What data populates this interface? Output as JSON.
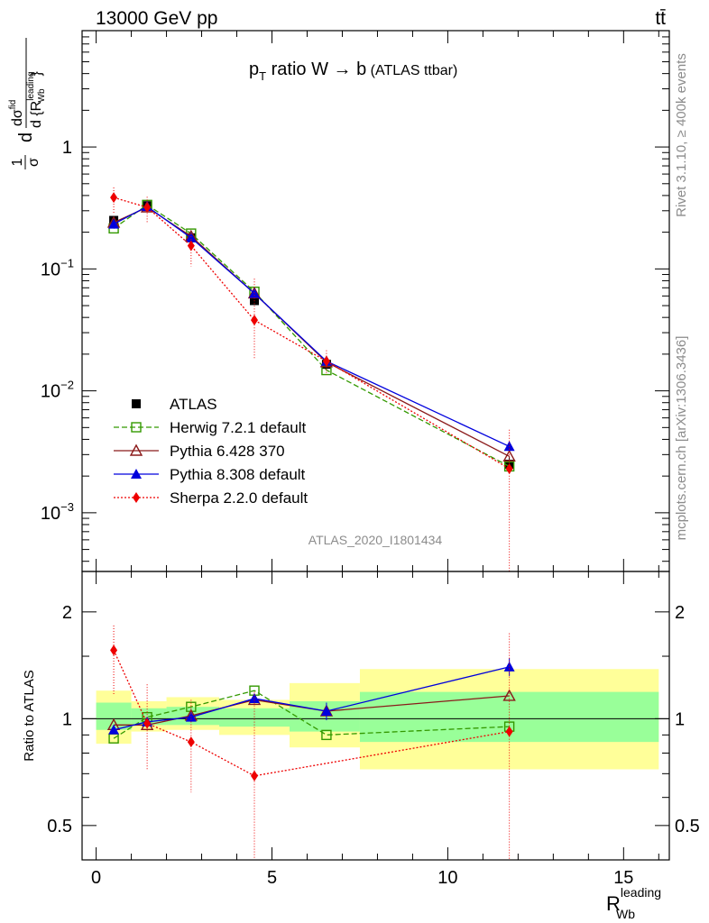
{
  "header": {
    "left_label": "13000 GeV pp",
    "right_label": "tt̄"
  },
  "side_labels": {
    "rivet": "Rivet 3.1.10, ≥ 400k events",
    "mcplots": "mcplots.cern.ch [arXiv:1306.3436]"
  },
  "plot_title": {
    "main": "p",
    "sub": "T",
    "rest": " ratio W → b",
    "small": " (ATLAS ttbar)"
  },
  "watermark": "ATLAS_2020_I1801434",
  "top_ylabel": {
    "frac": "1",
    "sigma": "σ",
    "d1": "d",
    "num": "dσ",
    "num_sup": "fid",
    "den": "d {R",
    "den_sup": "leading",
    "den_sub": "Wb",
    "den_close": "}"
  },
  "bottom_ylabel": "Ratio to ATLAS",
  "xlabel": {
    "main": "R",
    "sup": "leading",
    "sub": "Wb"
  },
  "chart_data": [
    {
      "type": "line",
      "panel": "main",
      "yscale": "log",
      "xlim": [
        -0.4,
        16.3
      ],
      "ylim": [
        0.00033,
        9.0
      ],
      "y_ticks": [
        {
          "value": 1,
          "label": "1"
        },
        {
          "value": 0.1,
          "label": "10",
          "exp": "−1"
        },
        {
          "value": 0.01,
          "label": "10",
          "exp": "−2"
        },
        {
          "value": 0.001,
          "label": "10",
          "exp": "−3"
        }
      ],
      "bins": [
        [
          0,
          1
        ],
        [
          1,
          2
        ],
        [
          2,
          3.5
        ],
        [
          3.5,
          5.5
        ],
        [
          5.5,
          7.5
        ],
        [
          7.5,
          16
        ]
      ],
      "series": [
        {
          "name": "ATLAS",
          "color": "#000000",
          "marker": "square-filled",
          "dash": "none",
          "x": [
            0.5,
            1.45,
            2.7,
            4.5,
            6.55,
            11.75
          ],
          "y": [
            0.25,
            0.33,
            0.18,
            0.055,
            0.0165,
            0.0025
          ],
          "yerr": [
            0.02,
            0.02,
            0.012,
            0.004,
            0.0012,
            0.0004
          ]
        },
        {
          "name": "Herwig 7.2.1 default",
          "color": "#339900",
          "marker": "square-open",
          "dash": "6,3",
          "x": [
            0.5,
            1.45,
            2.7,
            4.5,
            6.55,
            11.75
          ],
          "y": [
            0.215,
            0.335,
            0.195,
            0.065,
            0.0148,
            0.0024
          ]
        },
        {
          "name": "Pythia 6.428 370",
          "color": "#8b1a1a",
          "marker": "triangle-open",
          "dash": "none",
          "x": [
            0.5,
            1.45,
            2.7,
            4.5,
            6.55,
            11.75
          ],
          "y": [
            0.24,
            0.32,
            0.185,
            0.063,
            0.0172,
            0.0029
          ]
        },
        {
          "name": "Pythia 8.308 default",
          "color": "#0000dd",
          "marker": "triangle-filled",
          "dash": "none",
          "x": [
            0.5,
            1.45,
            2.7,
            4.5,
            6.55,
            11.75
          ],
          "y": [
            0.233,
            0.325,
            0.18,
            0.063,
            0.0175,
            0.0035
          ]
        },
        {
          "name": "Sherpa 2.2.0 default",
          "color": "#ee0000",
          "marker": "diamond-filled",
          "dash": "2,2",
          "x": [
            0.5,
            1.45,
            2.7,
            4.5,
            6.55,
            11.75
          ],
          "y": [
            0.385,
            0.32,
            0.155,
            0.038,
            0.0175,
            0.0023
          ],
          "yerr_up": [
            0.08,
            0.07,
            0.04,
            0.045,
            0.004,
            0.0025
          ],
          "yerr_down": [
            0.1,
            0.08,
            0.05,
            0.02,
            0.004,
            0.0021
          ]
        }
      ]
    },
    {
      "type": "line",
      "panel": "ratio",
      "yscale": "log",
      "xlim": [
        -0.4,
        16.3
      ],
      "ylim": [
        0.4,
        2.6
      ],
      "ylabel": "Ratio to ATLAS",
      "y_ticks": [
        {
          "value": 0.5,
          "label": "0.5"
        },
        {
          "value": 1,
          "label": "1"
        },
        {
          "value": 2,
          "label": "2"
        }
      ],
      "x_ticks": [
        0,
        5,
        10,
        15
      ],
      "bands": [
        {
          "bin": [
            0,
            1
          ],
          "stat": [
            0.93,
            1.11
          ],
          "total": [
            0.85,
            1.2
          ]
        },
        {
          "bin": [
            1,
            2
          ],
          "stat": [
            0.96,
            1.07
          ],
          "total": [
            0.92,
            1.12
          ]
        },
        {
          "bin": [
            2,
            3.5
          ],
          "stat": [
            0.96,
            1.08
          ],
          "total": [
            0.93,
            1.15
          ]
        },
        {
          "bin": [
            3.5,
            5.5
          ],
          "stat": [
            0.95,
            1.07
          ],
          "total": [
            0.9,
            1.13
          ]
        },
        {
          "bin": [
            5.5,
            7.5
          ],
          "stat": [
            0.92,
            1.12
          ],
          "total": [
            0.83,
            1.26
          ]
        },
        {
          "bin": [
            7.5,
            16
          ],
          "stat": [
            0.86,
            1.19
          ],
          "total": [
            0.72,
            1.38
          ]
        }
      ],
      "series": [
        {
          "name": "Herwig 7.2.1 default",
          "color": "#339900",
          "marker": "square-open",
          "dash": "6,3",
          "x": [
            0.5,
            1.45,
            2.7,
            4.5,
            6.55,
            11.75
          ],
          "y": [
            0.88,
            1.01,
            1.08,
            1.2,
            0.9,
            0.95
          ]
        },
        {
          "name": "Pythia 6.428 370",
          "color": "#8b1a1a",
          "marker": "triangle-open",
          "dash": "none",
          "x": [
            0.5,
            1.45,
            2.7,
            4.5,
            6.55,
            11.75
          ],
          "y": [
            0.96,
            0.96,
            1.02,
            1.13,
            1.05,
            1.16
          ]
        },
        {
          "name": "Pythia 8.308 default",
          "color": "#0000dd",
          "marker": "triangle-filled",
          "dash": "none",
          "x": [
            0.5,
            1.45,
            2.7,
            4.5,
            6.55,
            11.75
          ],
          "y": [
            0.93,
            0.98,
            1.01,
            1.14,
            1.05,
            1.4
          ],
          "yerr": [
            0.0,
            0.0,
            0.0,
            0.0,
            0.06,
            0.08
          ]
        },
        {
          "name": "Sherpa 2.2.0 default",
          "color": "#ee0000",
          "marker": "diamond-filled",
          "dash": "2,2",
          "x": [
            0.5,
            1.45,
            2.7,
            4.5,
            6.55,
            11.75
          ],
          "y": [
            1.56,
            0.97,
            0.86,
            0.69,
            null,
            0.92
          ],
          "yerr_up": [
            0.27,
            0.28,
            0.27,
            0.5,
            null,
            0.82
          ],
          "yerr_down": [
            0.4,
            0.25,
            0.24,
            0.4,
            null,
            0.58
          ]
        }
      ]
    }
  ]
}
